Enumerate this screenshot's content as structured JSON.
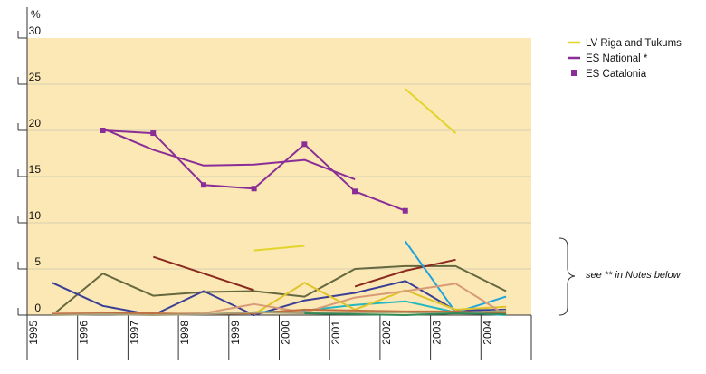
{
  "chart_data": {
    "type": "line",
    "ylabel": "%",
    "ylim": [
      0,
      30
    ],
    "yticks": [
      "0",
      "5",
      "10",
      "15",
      "20",
      "25",
      "30"
    ],
    "categories": [
      "1995",
      "1996",
      "1997",
      "1998",
      "1999",
      "2000",
      "2001",
      "2002",
      "2003",
      "2004"
    ],
    "plot_background": "#fbe8b5",
    "grid": true,
    "legend_position": "top-right",
    "series": [
      {
        "name": "LV Riga and Tukums",
        "color": "#e3d42b",
        "marker": false,
        "values": [
          null,
          null,
          null,
          null,
          7.0,
          7.5,
          null,
          24.5,
          19.7,
          null
        ]
      },
      {
        "name": "ES National *",
        "color": "#8a2d96",
        "marker": false,
        "values": [
          null,
          20.2,
          17.9,
          16.2,
          16.3,
          16.8,
          14.7,
          null,
          null,
          null
        ]
      },
      {
        "name": "ES Catalonia",
        "color": "#8a2d96",
        "marker": true,
        "values": [
          null,
          20.0,
          19.7,
          14.1,
          13.7,
          18.5,
          13.4,
          11.3,
          null,
          null
        ]
      },
      {
        "color": "#66683f",
        "values": [
          0.0,
          4.5,
          2.1,
          2.5,
          2.6,
          2.0,
          5.0,
          5.3,
          5.3,
          2.6
        ]
      },
      {
        "color": "#8b2a1f",
        "values": [
          null,
          null,
          6.3,
          4.5,
          2.7,
          null,
          3.1,
          4.8,
          6.0,
          null
        ]
      },
      {
        "color": "#3a3f96",
        "values": [
          3.5,
          1.0,
          0.0,
          2.6,
          0.0,
          1.6,
          2.4,
          3.7,
          0.5,
          0.6
        ]
      },
      {
        "color": "#1ea3dd",
        "values": [
          null,
          null,
          null,
          null,
          null,
          null,
          null,
          8.0,
          0.3,
          2.0
        ]
      },
      {
        "color": "#24b7c1",
        "values": [
          null,
          null,
          null,
          null,
          0.3,
          0.5,
          1.1,
          1.5,
          0.3,
          0.0
        ]
      },
      {
        "color": "#e0c229",
        "values": [
          null,
          null,
          null,
          null,
          0.1,
          3.5,
          0.6,
          2.7,
          0.6,
          0.9
        ]
      },
      {
        "color": "#d99a78",
        "values": [
          0.2,
          0.3,
          0.1,
          0.2,
          1.2,
          0.3,
          1.9,
          2.6,
          3.4,
          0.0
        ]
      },
      {
        "color": "#c07040",
        "values": [
          0.1,
          0.2,
          0.2,
          0.1,
          0.2,
          0.6,
          0.5,
          0.4,
          0.4,
          0.2
        ]
      },
      {
        "color": "#a8a07a",
        "values": [
          0.0,
          0.1,
          0.0,
          0.1,
          0.3,
          0.2,
          0.3,
          0.3,
          0.2,
          0.5
        ]
      },
      {
        "color": "#2f8a58",
        "values": [
          null,
          null,
          null,
          null,
          null,
          0.2,
          0.1,
          0.0,
          0.2,
          0.1
        ]
      }
    ],
    "legend": [
      {
        "label": "LV Riga and Tukums",
        "color": "#e3d42b",
        "symbol": "line"
      },
      {
        "label": "ES National *",
        "color": "#8a2d96",
        "symbol": "line"
      },
      {
        "label": "ES Catalonia",
        "color": "#8a2d96",
        "symbol": "square"
      }
    ],
    "annotation": "see ** in Notes below"
  }
}
